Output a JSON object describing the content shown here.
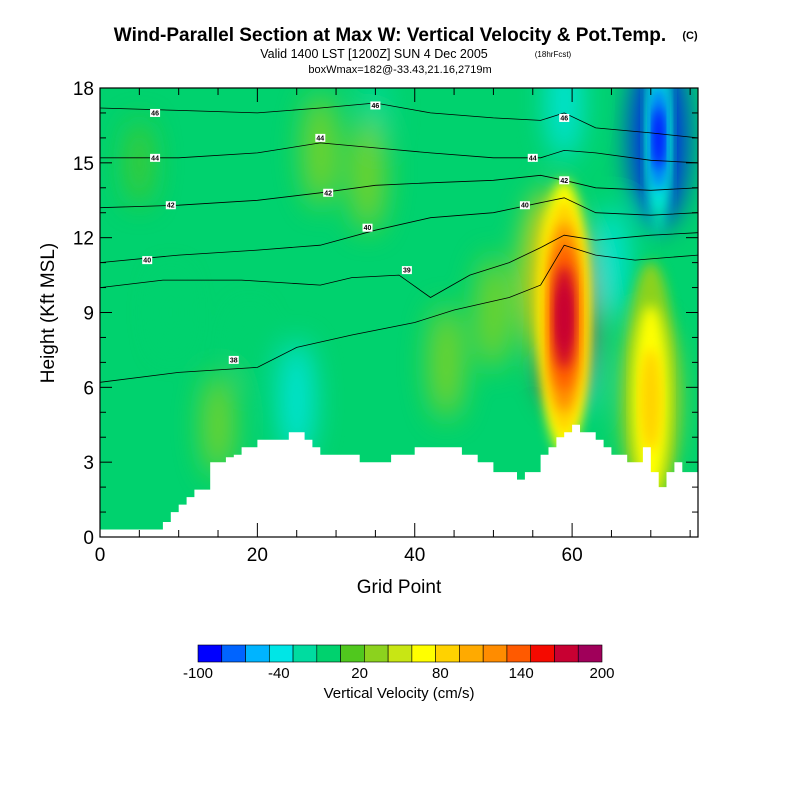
{
  "header": {
    "title": "Wind-Parallel Section at Max W: Vertical Velocity & Pot.Temp.",
    "copyright": "(C)",
    "valid": "Valid 1400 LST [1200Z] SUN 4 Dec 2005",
    "forecast": "(18hrFcst)",
    "box_info": "boxWmax=182@-33.43,21.16,2719m"
  },
  "chart_data": {
    "type": "heatmap",
    "xlabel": "Grid Point",
    "ylabel": "Height (Kft MSL)",
    "xlim": [
      0,
      76
    ],
    "ylim": [
      0,
      18
    ],
    "x_ticks": [
      "0",
      "20",
      "40",
      "60"
    ],
    "y_ticks": [
      "0",
      "3",
      "6",
      "9",
      "12",
      "15",
      "18"
    ],
    "x_tick_values": [
      0,
      20,
      40,
      60
    ],
    "y_tick_values": [
      0,
      3,
      6,
      9,
      12,
      15,
      18
    ],
    "max_w_cms": 182,
    "w_max_location": {
      "grid_point": 59,
      "height_kft": 8.5
    },
    "colorbar": {
      "label": "Vertical Velocity (cm/s)",
      "tick_labels": [
        "-100",
        "-40",
        "20",
        "80",
        "140",
        "200"
      ],
      "colors": [
        "#0000ff",
        "#0064ff",
        "#00b4ff",
        "#00e6e6",
        "#00dca0",
        "#00d26e",
        "#50c81e",
        "#8cd21e",
        "#c8e614",
        "#ffff00",
        "#ffd200",
        "#ffaa00",
        "#ff8c00",
        "#ff5a00",
        "#f50a00",
        "#c80032",
        "#a0005a"
      ]
    },
    "terrain_kft": [
      0.3,
      0.3,
      0.3,
      0.3,
      0.3,
      0.3,
      0.3,
      0.3,
      0.6,
      1.0,
      1.3,
      1.6,
      1.9,
      1.9,
      3.0,
      3.0,
      3.2,
      3.3,
      3.6,
      3.6,
      3.9,
      3.9,
      3.9,
      3.9,
      4.2,
      4.2,
      3.9,
      3.6,
      3.3,
      3.3,
      3.3,
      3.3,
      3.3,
      3.0,
      3.0,
      3.0,
      3.0,
      3.3,
      3.3,
      3.3,
      3.6,
      3.6,
      3.6,
      3.6,
      3.6,
      3.6,
      3.3,
      3.3,
      3.0,
      3.0,
      2.6,
      2.6,
      2.6,
      2.3,
      2.6,
      2.6,
      3.3,
      3.6,
      4.0,
      4.2,
      4.5,
      4.2,
      4.2,
      3.9,
      3.6,
      3.3,
      3.3,
      3.0,
      3.0,
      3.6,
      2.6,
      2.0,
      2.6,
      3.0,
      2.6,
      2.6
    ],
    "updraft_cores": [
      {
        "x": 59,
        "y": 8.8,
        "w": 182
      },
      {
        "x": 57,
        "y": 10.5,
        "w": 90
      },
      {
        "x": 70,
        "y": 5.5,
        "w": 80
      },
      {
        "x": 34,
        "y": 14.5,
        "w": 40
      },
      {
        "x": 50,
        "y": 9.0,
        "w": 40
      },
      {
        "x": 44,
        "y": 7.0,
        "w": 40
      },
      {
        "x": 28,
        "y": 15.5,
        "w": 40
      },
      {
        "x": 15,
        "y": 4.5,
        "w": 30
      },
      {
        "x": 5,
        "y": 15.0,
        "w": 15
      }
    ],
    "downdraft_cores": [
      {
        "x": 71,
        "y": 16.0,
        "w": -100
      },
      {
        "x": 59,
        "y": 17.5,
        "w": -45
      },
      {
        "x": 61,
        "y": 7.0,
        "w": -30
      },
      {
        "x": 25,
        "y": 5.5,
        "w": -45
      },
      {
        "x": 65,
        "y": 11.0,
        "w": -40
      },
      {
        "x": 35,
        "y": 17.0,
        "w": -15
      },
      {
        "x": 9,
        "y": 9.0,
        "w": -10
      },
      {
        "x": 19,
        "y": 7.5,
        "w": -10
      }
    ],
    "theta_contours": [
      {
        "label": "38",
        "points": [
          [
            0,
            6.2
          ],
          [
            10,
            6.6
          ],
          [
            20,
            6.8
          ],
          [
            25,
            7.6
          ],
          [
            32,
            8.1
          ],
          [
            40,
            8.6
          ],
          [
            45,
            9.1
          ],
          [
            52,
            9.6
          ],
          [
            56,
            10.1
          ],
          [
            59,
            11.7
          ],
          [
            63,
            11.3
          ],
          [
            68,
            11.1
          ],
          [
            76,
            11.3
          ]
        ],
        "labels_at": [
          [
            17,
            7.1
          ]
        ]
      },
      {
        "label": "39",
        "points": [
          [
            0,
            10.0
          ],
          [
            8,
            10.3
          ],
          [
            18,
            10.3
          ],
          [
            28,
            10.1
          ],
          [
            32,
            10.4
          ],
          [
            38,
            10.5
          ],
          [
            42,
            9.6
          ],
          [
            47,
            10.5
          ],
          [
            52,
            11.0
          ],
          [
            56,
            11.6
          ],
          [
            59,
            12.1
          ],
          [
            63,
            11.9
          ],
          [
            70,
            12.1
          ],
          [
            76,
            12.2
          ]
        ],
        "labels_at": [
          [
            39,
            10.7
          ]
        ]
      },
      {
        "label": "40",
        "points": [
          [
            0,
            11.0
          ],
          [
            10,
            11.3
          ],
          [
            20,
            11.5
          ],
          [
            28,
            11.7
          ],
          [
            35,
            12.3
          ],
          [
            42,
            12.8
          ],
          [
            50,
            13.0
          ],
          [
            56,
            13.4
          ],
          [
            59,
            13.6
          ],
          [
            63,
            13.0
          ],
          [
            70,
            12.9
          ],
          [
            76,
            13.0
          ]
        ],
        "labels_at": [
          [
            6,
            11.1
          ],
          [
            34,
            12.4
          ],
          [
            54,
            13.3
          ]
        ]
      },
      {
        "label": "42",
        "points": [
          [
            0,
            13.2
          ],
          [
            10,
            13.3
          ],
          [
            20,
            13.5
          ],
          [
            28,
            13.8
          ],
          [
            35,
            14.1
          ],
          [
            42,
            14.2
          ],
          [
            50,
            14.3
          ],
          [
            56,
            14.5
          ],
          [
            59,
            14.3
          ],
          [
            63,
            14.0
          ],
          [
            70,
            13.9
          ],
          [
            76,
            14.0
          ]
        ],
        "labels_at": [
          [
            9,
            13.3
          ],
          [
            29,
            13.8
          ],
          [
            59,
            14.3
          ]
        ]
      },
      {
        "label": "44",
        "points": [
          [
            0,
            15.2
          ],
          [
            10,
            15.2
          ],
          [
            20,
            15.4
          ],
          [
            28,
            15.8
          ],
          [
            35,
            15.6
          ],
          [
            42,
            15.4
          ],
          [
            50,
            15.2
          ],
          [
            56,
            15.2
          ],
          [
            59,
            15.5
          ],
          [
            63,
            15.4
          ],
          [
            70,
            15.1
          ],
          [
            76,
            15.0
          ]
        ],
        "labels_at": [
          [
            7,
            15.2
          ],
          [
            28,
            16.0
          ],
          [
            55,
            15.2
          ]
        ]
      },
      {
        "label": "46",
        "points": [
          [
            0,
            17.2
          ],
          [
            10,
            17.1
          ],
          [
            20,
            17.0
          ],
          [
            28,
            17.2
          ],
          [
            35,
            17.4
          ],
          [
            42,
            17.0
          ],
          [
            50,
            16.8
          ],
          [
            56,
            16.7
          ],
          [
            59,
            17.0
          ],
          [
            63,
            16.4
          ],
          [
            70,
            16.2
          ],
          [
            76,
            16.0
          ]
        ],
        "labels_at": [
          [
            7,
            17.0
          ],
          [
            35,
            17.3
          ],
          [
            59,
            16.8
          ]
        ]
      }
    ]
  }
}
